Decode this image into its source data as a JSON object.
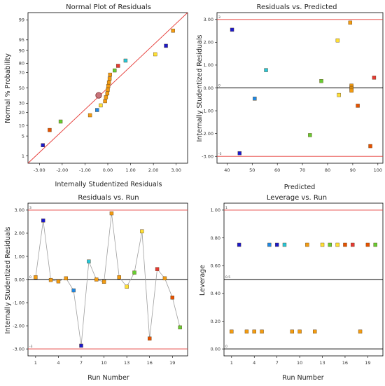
{
  "colors": {
    "ref_line": "#e53935",
    "frame": "#000000",
    "connector": "#9e9e9e"
  },
  "chart_data": [
    {
      "id": "normal_plot",
      "type": "scatter",
      "title": "Normal Plot of Residuals",
      "xlabel": "Internally Studentized Residuals",
      "ylabel": "Normal % Probability",
      "xlim": [
        -3.5,
        3.5
      ],
      "x_ticks": [
        "-3.00",
        "-2.00",
        "-1.00",
        "0.00",
        "1.00",
        "2.00",
        "3.00"
      ],
      "y_scale": "normal-probability",
      "y_ticks": [
        "1",
        "5",
        "10",
        "20",
        "30",
        "50",
        "70",
        "80",
        "90",
        "95",
        "99"
      ],
      "fit_line": [
        [
          -3.5,
          0.5
        ],
        [
          3.5,
          99.5
        ]
      ],
      "points": [
        {
          "x": -2.85,
          "y": 2.5,
          "color": "#1a1acc"
        },
        {
          "x": -2.55,
          "y": 7.5,
          "color": "#e65100"
        },
        {
          "x": -2.07,
          "y": 12.5,
          "color": "#66cc33"
        },
        {
          "x": -0.78,
          "y": 17.5,
          "color": "#f39c12"
        },
        {
          "x": -0.47,
          "y": 22.5,
          "color": "#1e88e5"
        },
        {
          "x": -0.31,
          "y": 27.5,
          "color": "#ffe135"
        },
        {
          "x": -0.12,
          "y": 32.5,
          "color": "#f39c12"
        },
        {
          "x": -0.08,
          "y": 37.5,
          "color": "#f39c12"
        },
        {
          "x": -0.02,
          "y": 42.5,
          "color": "#f39c12"
        },
        {
          "x": 0.0,
          "y": 47.5,
          "color": "#f39c12"
        },
        {
          "x": 0.02,
          "y": 52.5,
          "color": "#f39c12"
        },
        {
          "x": 0.05,
          "y": 57.5,
          "color": "#f39c12"
        },
        {
          "x": 0.08,
          "y": 62.5,
          "color": "#f39c12"
        },
        {
          "x": 0.1,
          "y": 67.5,
          "color": "#f39c12"
        },
        {
          "x": 0.3,
          "y": 72.5,
          "color": "#66cc33"
        },
        {
          "x": 0.45,
          "y": 77.5,
          "color": "#e53935"
        },
        {
          "x": 0.78,
          "y": 82.5,
          "color": "#26c6da"
        },
        {
          "x": 2.08,
          "y": 87.5,
          "color": "#ffe135"
        },
        {
          "x": 2.55,
          "y": 92.5,
          "color": "#1a1acc"
        },
        {
          "x": 2.86,
          "y": 97.5,
          "color": "#f39c12"
        }
      ],
      "highlight_point": {
        "x": -0.4,
        "y": 40.0
      }
    },
    {
      "id": "resid_vs_pred",
      "type": "scatter",
      "title": "Residuals vs. Predicted",
      "xlabel": "Predicted",
      "ylabel": "Internally Studentized Residuals",
      "xlim": [
        36,
        102
      ],
      "ylim": [
        -3.3,
        3.3
      ],
      "x_ticks": [
        40,
        50,
        60,
        70,
        80,
        90,
        100
      ],
      "y_ticks": [
        "-3.00",
        "-2.00",
        "-1.00",
        "0.00",
        "1.00",
        "2.00",
        "3.00"
      ],
      "ref_lines": [
        {
          "y": 3,
          "label": "3"
        },
        {
          "y": -3,
          "label": "-3"
        }
      ],
      "zero_line_label": "0",
      "points": [
        {
          "x": 42,
          "y": 2.55,
          "color": "#1a1acc"
        },
        {
          "x": 45,
          "y": -2.86,
          "color": "#1a1acc"
        },
        {
          "x": 51,
          "y": -0.47,
          "color": "#1e88e5"
        },
        {
          "x": 55.5,
          "y": 0.78,
          "color": "#26c6da"
        },
        {
          "x": 73,
          "y": -2.07,
          "color": "#66cc33"
        },
        {
          "x": 77.5,
          "y": 0.3,
          "color": "#66cc33"
        },
        {
          "x": 84,
          "y": 2.08,
          "color": "#ffe135"
        },
        {
          "x": 84.5,
          "y": -0.31,
          "color": "#ffe135"
        },
        {
          "x": 89,
          "y": 2.86,
          "color": "#f39c12"
        },
        {
          "x": 89.5,
          "y": 0.1,
          "color": "#f39c12"
        },
        {
          "x": 89.5,
          "y": 0.05,
          "color": "#f39c12"
        },
        {
          "x": 89.5,
          "y": -0.02,
          "color": "#f39c12"
        },
        {
          "x": 89.5,
          "y": -0.08,
          "color": "#f39c12"
        },
        {
          "x": 89.5,
          "y": -0.12,
          "color": "#f39c12"
        },
        {
          "x": 92,
          "y": -0.78,
          "color": "#e65100"
        },
        {
          "x": 97,
          "y": -2.55,
          "color": "#e65100"
        },
        {
          "x": 98.5,
          "y": 0.45,
          "color": "#e53935"
        }
      ]
    },
    {
      "id": "resid_vs_run",
      "type": "line",
      "title": "Residuals vs. Run",
      "xlabel": "Run Number",
      "ylabel": "Internally Studentized Residuals",
      "xlim": [
        0,
        21
      ],
      "ylim": [
        -3.3,
        3.3
      ],
      "x_ticks": [
        1,
        4,
        7,
        10,
        13,
        16,
        19
      ],
      "y_ticks": [
        "-3.00",
        "-2.00",
        "-1.00",
        "0.00",
        "1.00",
        "2.00",
        "3.00"
      ],
      "ref_lines": [
        {
          "y": 3,
          "label": "3"
        },
        {
          "y": -3,
          "label": "-3"
        }
      ],
      "zero_line_label": "0",
      "points": [
        {
          "x": 1,
          "y": 0.1,
          "color": "#f39c12"
        },
        {
          "x": 2,
          "y": 2.55,
          "color": "#1a1acc"
        },
        {
          "x": 3,
          "y": -0.02,
          "color": "#f39c12"
        },
        {
          "x": 4,
          "y": -0.08,
          "color": "#f39c12"
        },
        {
          "x": 5,
          "y": 0.05,
          "color": "#f39c12"
        },
        {
          "x": 6,
          "y": -0.47,
          "color": "#1e88e5"
        },
        {
          "x": 7,
          "y": -2.86,
          "color": "#1a1acc"
        },
        {
          "x": 8,
          "y": 0.78,
          "color": "#26c6da"
        },
        {
          "x": 9,
          "y": 0.0,
          "color": "#f39c12"
        },
        {
          "x": 10,
          "y": -0.1,
          "color": "#f39c12"
        },
        {
          "x": 11,
          "y": 2.86,
          "color": "#f39c12"
        },
        {
          "x": 12,
          "y": 0.1,
          "color": "#f39c12"
        },
        {
          "x": 13,
          "y": -0.31,
          "color": "#ffe135"
        },
        {
          "x": 14,
          "y": 0.3,
          "color": "#66cc33"
        },
        {
          "x": 15,
          "y": 2.08,
          "color": "#ffe135"
        },
        {
          "x": 16,
          "y": -2.55,
          "color": "#e65100"
        },
        {
          "x": 17,
          "y": 0.45,
          "color": "#e53935"
        },
        {
          "x": 18,
          "y": 0.05,
          "color": "#f39c12"
        },
        {
          "x": 19,
          "y": -0.78,
          "color": "#e65100"
        },
        {
          "x": 20,
          "y": -2.07,
          "color": "#66cc33"
        }
      ]
    },
    {
      "id": "leverage_vs_run",
      "type": "scatter",
      "title": "Leverage vs. Run",
      "xlabel": "Run Number",
      "ylabel": "Leverage",
      "xlim": [
        0,
        21
      ],
      "ylim": [
        -0.05,
        1.05
      ],
      "x_ticks": [
        1,
        4,
        7,
        10,
        13,
        16,
        19
      ],
      "y_ticks": [
        "0.00",
        "0.20",
        "0.40",
        "0.60",
        "0.80",
        "1.00"
      ],
      "ref_lines": [
        {
          "y": 1,
          "label": "1"
        },
        {
          "y": 0.5,
          "label": "0.5"
        },
        {
          "y": 0,
          "label": "0"
        }
      ],
      "points": [
        {
          "x": 1,
          "y": 0.125,
          "color": "#f39c12"
        },
        {
          "x": 2,
          "y": 0.75,
          "color": "#1a1acc"
        },
        {
          "x": 3,
          "y": 0.125,
          "color": "#f39c12"
        },
        {
          "x": 4,
          "y": 0.125,
          "color": "#f39c12"
        },
        {
          "x": 5,
          "y": 0.125,
          "color": "#f39c12"
        },
        {
          "x": 6,
          "y": 0.75,
          "color": "#1e88e5"
        },
        {
          "x": 7,
          "y": 0.75,
          "color": "#1a1acc"
        },
        {
          "x": 8,
          "y": 0.75,
          "color": "#26c6da"
        },
        {
          "x": 9,
          "y": 0.125,
          "color": "#f39c12"
        },
        {
          "x": 10,
          "y": 0.125,
          "color": "#f39c12"
        },
        {
          "x": 11,
          "y": 0.75,
          "color": "#f39c12"
        },
        {
          "x": 12,
          "y": 0.125,
          "color": "#f39c12"
        },
        {
          "x": 13,
          "y": 0.75,
          "color": "#ffe135"
        },
        {
          "x": 14,
          "y": 0.75,
          "color": "#66cc33"
        },
        {
          "x": 15,
          "y": 0.75,
          "color": "#ffe135"
        },
        {
          "x": 16,
          "y": 0.75,
          "color": "#e65100"
        },
        {
          "x": 17,
          "y": 0.75,
          "color": "#e53935"
        },
        {
          "x": 18,
          "y": 0.125,
          "color": "#f39c12"
        },
        {
          "x": 19,
          "y": 0.75,
          "color": "#e65100"
        },
        {
          "x": 20,
          "y": 0.75,
          "color": "#66cc33"
        }
      ]
    }
  ]
}
